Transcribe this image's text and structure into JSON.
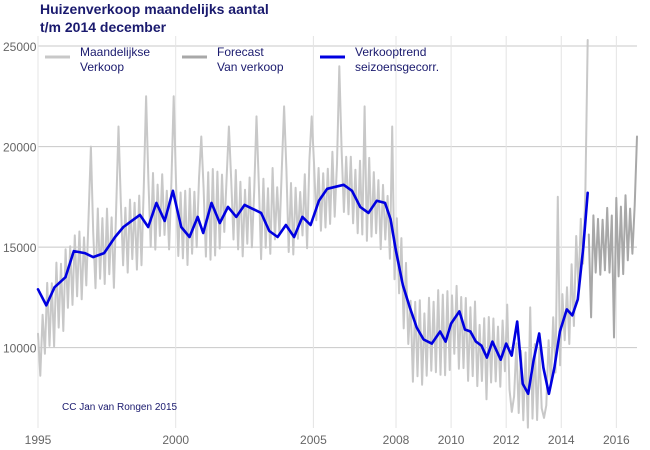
{
  "chart_data": {
    "type": "line",
    "title_line1": "Huizenverkoop maandelijks aantal",
    "title_line2": "t/m 2014 december",
    "xlabel": "",
    "ylabel": "",
    "x_range": [
      1995,
      2016.75
    ],
    "ylim": [
      6000,
      25500
    ],
    "y_ticks": [
      10000,
      15000,
      20000,
      25000
    ],
    "y_tick_labels": [
      "10000",
      "15000",
      "20000",
      "25000"
    ],
    "x_ticks": [
      {
        "value": 1995,
        "label": "1995"
      },
      {
        "value": 2000,
        "label": "2000"
      },
      {
        "value": 2005,
        "label": "2005"
      },
      {
        "value": 2008,
        "label": "2008"
      },
      {
        "value": 2010,
        "label": "2010"
      },
      {
        "value": 2012,
        "label": "2012"
      },
      {
        "value": 2014,
        "label": "2014"
      },
      {
        "value": 2016,
        "label": "2016"
      }
    ],
    "grid": true,
    "legend_position": "top-left",
    "series": [
      {
        "name": "Maandelijkse Verkoop",
        "legend_lines": [
          "Maandelijkse",
          "Verkoop"
        ],
        "color": "#c8c8c8",
        "style": "jagged",
        "x_start": 1995,
        "x_end": 2014.96,
        "points": 240,
        "trend_points": [
          [
            1995.0,
            9000
          ],
          [
            1995.3,
            11500
          ],
          [
            1995.7,
            12500
          ],
          [
            1996.0,
            13000
          ],
          [
            1996.5,
            14000
          ],
          [
            1997.0,
            14500
          ],
          [
            1997.5,
            15000
          ],
          [
            1998.0,
            15500
          ],
          [
            1998.5,
            16000
          ],
          [
            1999.0,
            16500
          ],
          [
            1999.5,
            17000
          ],
          [
            2000.0,
            16000
          ],
          [
            2001.0,
            16500
          ],
          [
            2002.0,
            17000
          ],
          [
            2003.0,
            16500
          ],
          [
            2004.0,
            17000
          ],
          [
            2004.5,
            16500
          ],
          [
            2005.0,
            17500
          ],
          [
            2005.5,
            17500
          ],
          [
            2006.0,
            18000
          ],
          [
            2007.0,
            17500
          ],
          [
            2007.5,
            17000
          ],
          [
            2008.0,
            15000
          ],
          [
            2008.3,
            13000
          ],
          [
            2008.6,
            10500
          ],
          [
            2009.0,
            10000
          ],
          [
            2009.5,
            10800
          ],
          [
            2010.0,
            11000
          ],
          [
            2010.5,
            10500
          ],
          [
            2011.0,
            10000
          ],
          [
            2011.5,
            9500
          ],
          [
            2012.0,
            10000
          ],
          [
            2012.5,
            8500
          ],
          [
            2013.0,
            8000
          ],
          [
            2013.5,
            9000
          ],
          [
            2014.0,
            11000
          ],
          [
            2014.5,
            13000
          ],
          [
            2014.96,
            17000
          ]
        ],
        "amplitude": 2000,
        "peaks": [
          {
            "x": 1996.9,
            "value": 20000
          },
          {
            "x": 1997.9,
            "value": 21000
          },
          {
            "x": 1998.9,
            "value": 22500
          },
          {
            "x": 1999.9,
            "value": 22500
          },
          {
            "x": 2000.9,
            "value": 20500
          },
          {
            "x": 2001.9,
            "value": 21000
          },
          {
            "x": 2002.9,
            "value": 21500
          },
          {
            "x": 2003.9,
            "value": 22000
          },
          {
            "x": 2004.9,
            "value": 21500
          },
          {
            "x": 2005.9,
            "value": 24000
          },
          {
            "x": 2006.9,
            "value": 22000
          },
          {
            "x": 2007.9,
            "value": 21000
          },
          {
            "x": 2012.9,
            "value": 12000
          },
          {
            "x": 2013.9,
            "value": 17500
          },
          {
            "x": 2014.92,
            "value": 25300
          }
        ],
        "lows": [
          {
            "x": 1995.05,
            "value": 8600
          },
          {
            "x": 2009.1,
            "value": 8600
          },
          {
            "x": 2012.2,
            "value": 6800
          },
          {
            "x": 2013.1,
            "value": 6400
          },
          {
            "x": 2013.4,
            "value": 6500
          }
        ]
      },
      {
        "name": "Forecast Van verkoop",
        "legend_lines": [
          "Forecast",
          "Van verkoop"
        ],
        "color": "#a8a8a8",
        "style": "jagged",
        "x_start": 2015.0,
        "x_end": 2016.75,
        "points": 22,
        "trend_points": [
          [
            2015.0,
            14500
          ],
          [
            2015.5,
            15000
          ],
          [
            2016.0,
            15500
          ],
          [
            2016.75,
            16000
          ]
        ],
        "amplitude": 1800,
        "peaks": [
          {
            "x": 2015.9,
            "value": 20500
          },
          {
            "x": 2016.72,
            "value": 20500
          }
        ],
        "lows": [
          {
            "x": 2015.1,
            "value": 11500
          },
          {
            "x": 2015.95,
            "value": 10500
          }
        ]
      },
      {
        "name": "Verkooptrend seizoensgecorr.",
        "legend_lines": [
          "Verkooptrend",
          "seizoensgecorr."
        ],
        "color": "#0000e0",
        "style": "smooth",
        "points": [
          [
            1995.0,
            12900
          ],
          [
            1995.3,
            12100
          ],
          [
            1995.6,
            13000
          ],
          [
            1996.0,
            13500
          ],
          [
            1996.3,
            14800
          ],
          [
            1996.7,
            14700
          ],
          [
            1997.0,
            14500
          ],
          [
            1997.4,
            14700
          ],
          [
            1997.8,
            15500
          ],
          [
            1998.1,
            16000
          ],
          [
            1998.4,
            16300
          ],
          [
            1998.7,
            16600
          ],
          [
            1999.0,
            16000
          ],
          [
            1999.3,
            17200
          ],
          [
            1999.6,
            16300
          ],
          [
            1999.9,
            17800
          ],
          [
            2000.2,
            16000
          ],
          [
            2000.5,
            15500
          ],
          [
            2000.8,
            16500
          ],
          [
            2001.0,
            15700
          ],
          [
            2001.3,
            17200
          ],
          [
            2001.6,
            16200
          ],
          [
            2001.9,
            17000
          ],
          [
            2002.2,
            16500
          ],
          [
            2002.5,
            17100
          ],
          [
            2002.8,
            16900
          ],
          [
            2003.1,
            16700
          ],
          [
            2003.4,
            15800
          ],
          [
            2003.7,
            15500
          ],
          [
            2004.0,
            16100
          ],
          [
            2004.3,
            15500
          ],
          [
            2004.6,
            16500
          ],
          [
            2004.9,
            16100
          ],
          [
            2005.2,
            17300
          ],
          [
            2005.5,
            17900
          ],
          [
            2005.8,
            18000
          ],
          [
            2006.1,
            18100
          ],
          [
            2006.4,
            17800
          ],
          [
            2006.7,
            17000
          ],
          [
            2007.0,
            16700
          ],
          [
            2007.3,
            17300
          ],
          [
            2007.6,
            17200
          ],
          [
            2007.8,
            16400
          ],
          [
            2008.0,
            14800
          ],
          [
            2008.25,
            13100
          ],
          [
            2008.5,
            12000
          ],
          [
            2008.75,
            11000
          ],
          [
            2009.0,
            10400
          ],
          [
            2009.3,
            10200
          ],
          [
            2009.6,
            10800
          ],
          [
            2009.8,
            10300
          ],
          [
            2010.0,
            11200
          ],
          [
            2010.3,
            11800
          ],
          [
            2010.5,
            10900
          ],
          [
            2010.7,
            10800
          ],
          [
            2010.9,
            10300
          ],
          [
            2011.1,
            10100
          ],
          [
            2011.3,
            9500
          ],
          [
            2011.5,
            10300
          ],
          [
            2011.8,
            9400
          ],
          [
            2012.0,
            10200
          ],
          [
            2012.2,
            9600
          ],
          [
            2012.4,
            11300
          ],
          [
            2012.6,
            8200
          ],
          [
            2012.8,
            7700
          ],
          [
            2013.0,
            9400
          ],
          [
            2013.2,
            10700
          ],
          [
            2013.35,
            9000
          ],
          [
            2013.55,
            7700
          ],
          [
            2013.75,
            9000
          ],
          [
            2013.95,
            10800
          ],
          [
            2014.2,
            11900
          ],
          [
            2014.4,
            11600
          ],
          [
            2014.6,
            12400
          ],
          [
            2014.8,
            15000
          ],
          [
            2014.96,
            17700
          ]
        ]
      }
    ],
    "annotation": "CC Jan van Rongen 2015"
  }
}
